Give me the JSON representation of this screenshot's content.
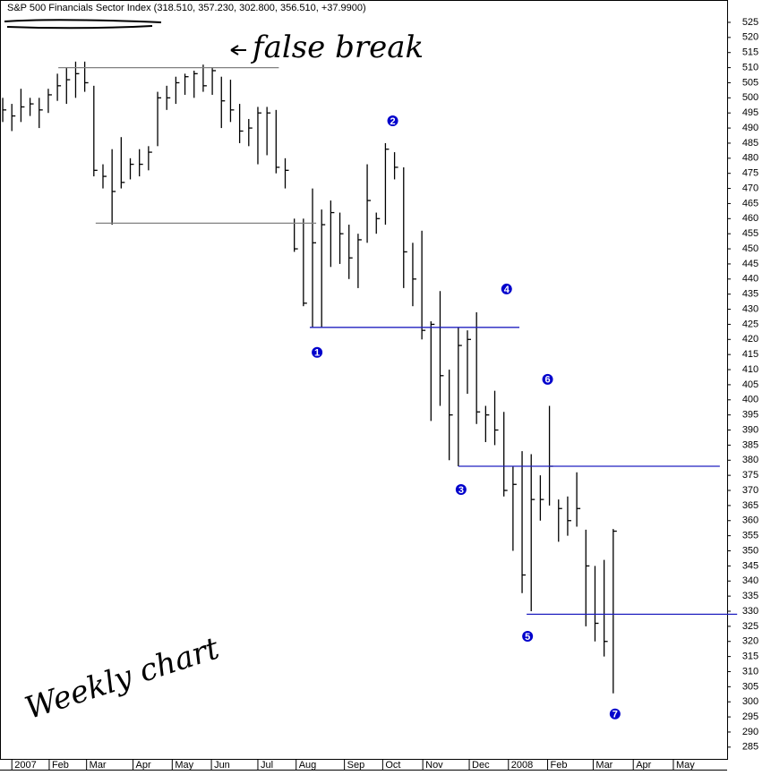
{
  "chart_data": {
    "type": "ohlc",
    "title": "S&P 500 Financials Sector Index (318.510, 357.230, 302.800, 356.510, +37.9900)",
    "x": [
      0.3,
      1.3,
      2.3,
      3.3,
      4.3,
      5.3,
      6.3,
      7.3,
      8.3,
      9.3,
      10.3,
      11.3,
      12.3,
      13.3,
      14.3,
      15.3,
      16.3,
      17.3,
      18.3,
      19.3,
      20.3,
      21.3,
      22.3,
      23.3,
      24.3,
      25.3,
      26.3,
      27.3,
      28.3,
      29.3,
      30.3,
      31.3,
      32.3,
      33.3,
      34.3,
      35.3,
      36.3,
      37.3,
      38.3,
      39.3,
      40.3,
      41.3,
      42.3,
      43.3,
      44.3,
      45.3,
      46.3,
      47.3,
      48.3,
      49.3,
      50.3,
      51.3,
      52.3,
      53.3,
      54.3,
      55.3,
      56.3,
      57.3,
      58.3,
      59.3,
      60.3,
      61.3,
      62.3,
      63.3,
      64.3,
      65.3,
      66.3,
      67.3
    ],
    "high": [
      500,
      498,
      503,
      500,
      500,
      503,
      508,
      510,
      512,
      512,
      504,
      478,
      483,
      487,
      480,
      483,
      484,
      502,
      504,
      507,
      508,
      509,
      511,
      510,
      507,
      506,
      498,
      493,
      497,
      497,
      496,
      480,
      460,
      460,
      470,
      463,
      466,
      462,
      458,
      455,
      478,
      462,
      485,
      482,
      477,
      452,
      456,
      426,
      436,
      410,
      424,
      423,
      429,
      398,
      403,
      396,
      378,
      383,
      382,
      375,
      398,
      367,
      368,
      376,
      357,
      345,
      347,
      357.23
    ],
    "low": [
      492,
      489,
      492,
      494,
      490,
      495,
      499,
      498,
      500,
      502,
      474,
      470,
      458,
      470,
      473,
      474,
      476,
      484,
      496,
      498,
      501,
      500,
      502,
      501,
      490,
      492,
      485,
      484,
      478,
      481,
      475,
      470,
      449,
      431,
      424,
      424,
      444,
      445,
      440,
      437,
      452,
      455,
      458,
      473,
      437,
      431,
      420,
      393,
      398,
      380,
      378,
      402,
      392,
      386,
      385,
      368,
      350,
      336,
      330,
      360,
      365,
      353,
      355,
      358,
      325,
      320,
      315,
      302.8
    ],
    "close": [
      496,
      494,
      497,
      498,
      496,
      501,
      504,
      506,
      508,
      505,
      476,
      474,
      469,
      472,
      478,
      478,
      482,
      500,
      500,
      505,
      507,
      508,
      504,
      509,
      499,
      496,
      489,
      490,
      495,
      495,
      477,
      476,
      450,
      432,
      452,
      458,
      462,
      455,
      447,
      453,
      466,
      460,
      483,
      477,
      449,
      440,
      423,
      425,
      408,
      395,
      418,
      420,
      396,
      395,
      390,
      370,
      372,
      342,
      367,
      367,
      378,
      364,
      360,
      364,
      345,
      326,
      320,
      356.51
    ],
    "xlim": [
      0,
      79.8
    ],
    "ylim": [
      281.1,
      532.4
    ],
    "xticks": [
      {
        "value": 1.3,
        "label": "2007"
      },
      {
        "value": 5.4,
        "label": "Feb"
      },
      {
        "value": 9.5,
        "label": "Mar"
      },
      {
        "value": 14.6,
        "label": "Apr"
      },
      {
        "value": 18.9,
        "label": "May"
      },
      {
        "value": 23.2,
        "label": "Jun"
      },
      {
        "value": 28.3,
        "label": "Jul"
      },
      {
        "value": 32.5,
        "label": "Aug"
      },
      {
        "value": 37.8,
        "label": "Sep"
      },
      {
        "value": 42.0,
        "label": "Oct"
      },
      {
        "value": 46.4,
        "label": "Nov"
      },
      {
        "value": 51.5,
        "label": "Dec"
      },
      {
        "value": 55.8,
        "label": "2008"
      },
      {
        "value": 60.1,
        "label": "Feb"
      },
      {
        "value": 65.1,
        "label": "Mar"
      },
      {
        "value": 69.5,
        "label": "Apr"
      },
      {
        "value": 73.9,
        "label": "May"
      }
    ],
    "yticks": [
      285,
      290,
      295,
      300,
      305,
      310,
      315,
      320,
      325,
      330,
      335,
      340,
      345,
      350,
      355,
      360,
      365,
      370,
      375,
      380,
      385,
      390,
      395,
      400,
      405,
      410,
      415,
      420,
      425,
      430,
      435,
      440,
      445,
      450,
      455,
      460,
      465,
      470,
      475,
      480,
      485,
      490,
      495,
      500,
      505,
      510,
      515,
      520,
      525
    ],
    "color": "#000000",
    "lines": [
      {
        "value": 510,
        "x": [
          6.4,
          30.6
        ],
        "color": "#808080"
      },
      {
        "value": 458.5,
        "x": [
          10.5,
          34.7
        ],
        "color": "#808080"
      },
      {
        "value": 424,
        "x": [
          34.0,
          57.0
        ],
        "color": "#2020c0"
      },
      {
        "value": 378,
        "x": [
          50.3,
          79.0
        ],
        "color": "#2020c0"
      },
      {
        "value": 329,
        "x": [
          57.8,
          80.9
        ],
        "color": "#2020c0"
      }
    ],
    "markers": [
      {
        "label": "1",
        "x": 34.8,
        "y": 415.7
      },
      {
        "label": "2",
        "x": 43.1,
        "y": 492.4
      },
      {
        "label": "3",
        "x": 50.6,
        "y": 370.3
      },
      {
        "label": "4",
        "x": 55.6,
        "y": 436.7
      },
      {
        "label": "5",
        "x": 57.9,
        "y": 321.7
      },
      {
        "label": "6",
        "x": 60.1,
        "y": 406.8
      },
      {
        "label": "7",
        "x": 67.5,
        "y": 296
      }
    ],
    "marker_color": "#0000cc",
    "annotations": [
      "false break",
      "Weekly chart"
    ]
  }
}
